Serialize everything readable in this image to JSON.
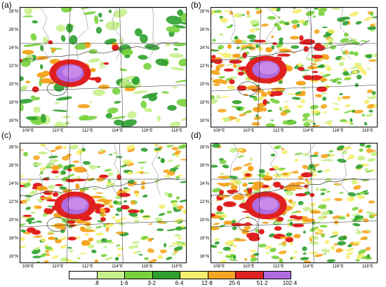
{
  "panels": [
    {
      "label": "(a)"
    },
    {
      "label": "(b)"
    },
    {
      "label": "(c)"
    },
    {
      "label": "(d)"
    }
  ],
  "latitudes": [
    "28°N",
    "26°N",
    "24°N",
    "22°N",
    "20°N",
    "18°N",
    "16°N"
  ],
  "longitudes": [
    "108°E",
    "110°E",
    "112°E",
    "114°E",
    "116°E",
    "118°E"
  ],
  "colorbar": {
    "labels": [
      ".8",
      "1·6",
      "3·2",
      "6·4",
      "12·8",
      "25·6",
      "51·2",
      "102·4"
    ],
    "colors": [
      "#ffffff",
      "#c8f08c",
      "#78d23c",
      "#2ea02e",
      "#f5ee6e",
      "#f5a623",
      "#e02020",
      "#b06ce0"
    ]
  }
}
